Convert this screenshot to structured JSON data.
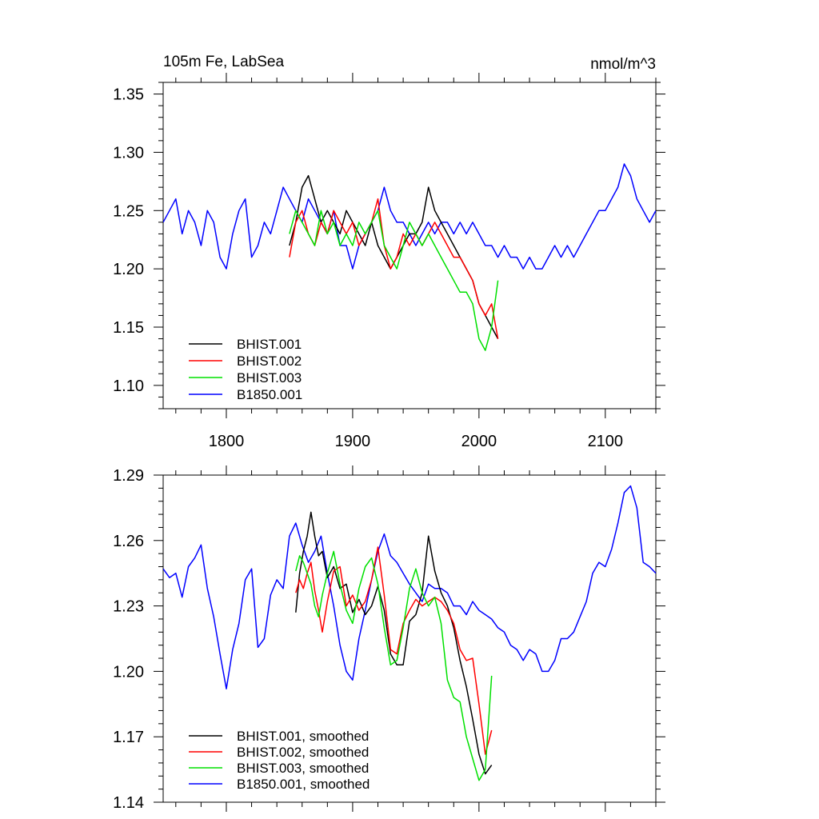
{
  "chart_data": [
    {
      "type": "line",
      "title": "105m Fe, LabSea",
      "units": "nmol/m^3",
      "xlim": [
        1750,
        2140
      ],
      "ylim": [
        1.08,
        1.36
      ],
      "x_ticks": [
        1800,
        1900,
        2000,
        2100
      ],
      "x_tick_labels": [
        "1800",
        "1900",
        "2000",
        "2100"
      ],
      "y_ticks": [
        1.1,
        1.15,
        1.2,
        1.25,
        1.3,
        1.35
      ],
      "y_tick_labels": [
        "1.10",
        "1.15",
        "1.20",
        "1.25",
        "1.30",
        "1.35"
      ],
      "legend_position": "bottom-left",
      "series": [
        {
          "name": "BHIST.001",
          "color": "#000000",
          "x": [
            1850,
            1855,
            1860,
            1865,
            1870,
            1875,
            1880,
            1885,
            1890,
            1895,
            1900,
            1905,
            1910,
            1915,
            1920,
            1925,
            1930,
            1935,
            1940,
            1945,
            1950,
            1955,
            1960,
            1965,
            1970,
            1975,
            1980,
            1985,
            1990,
            1995,
            2000,
            2005,
            2010,
            2015
          ],
          "y": [
            1.22,
            1.24,
            1.27,
            1.28,
            1.26,
            1.24,
            1.25,
            1.24,
            1.23,
            1.25,
            1.24,
            1.23,
            1.22,
            1.24,
            1.22,
            1.21,
            1.2,
            1.21,
            1.22,
            1.23,
            1.23,
            1.24,
            1.27,
            1.25,
            1.24,
            1.23,
            1.22,
            1.21,
            1.2,
            1.19,
            1.17,
            1.16,
            1.15,
            1.14
          ]
        },
        {
          "name": "BHIST.002",
          "color": "#ff0000",
          "x": [
            1850,
            1855,
            1860,
            1865,
            1870,
            1875,
            1880,
            1885,
            1890,
            1895,
            1900,
            1905,
            1910,
            1915,
            1920,
            1925,
            1930,
            1935,
            1940,
            1945,
            1950,
            1955,
            1960,
            1965,
            1970,
            1975,
            1980,
            1985,
            1990,
            1995,
            2000,
            2005,
            2010,
            2015
          ],
          "y": [
            1.21,
            1.24,
            1.25,
            1.23,
            1.22,
            1.24,
            1.23,
            1.25,
            1.24,
            1.23,
            1.24,
            1.22,
            1.23,
            1.24,
            1.26,
            1.22,
            1.2,
            1.21,
            1.23,
            1.22,
            1.23,
            1.22,
            1.23,
            1.24,
            1.23,
            1.22,
            1.21,
            1.21,
            1.2,
            1.19,
            1.17,
            1.16,
            1.17,
            1.14
          ]
        },
        {
          "name": "BHIST.003",
          "color": "#00e000",
          "x": [
            1850,
            1855,
            1860,
            1865,
            1870,
            1875,
            1880,
            1885,
            1890,
            1895,
            1900,
            1905,
            1910,
            1915,
            1920,
            1925,
            1930,
            1935,
            1940,
            1945,
            1950,
            1955,
            1960,
            1965,
            1970,
            1975,
            1980,
            1985,
            1990,
            1995,
            2000,
            2005,
            2010,
            2015
          ],
          "y": [
            1.23,
            1.25,
            1.24,
            1.23,
            1.22,
            1.25,
            1.23,
            1.24,
            1.22,
            1.23,
            1.22,
            1.24,
            1.23,
            1.24,
            1.25,
            1.22,
            1.21,
            1.2,
            1.22,
            1.24,
            1.23,
            1.22,
            1.23,
            1.22,
            1.21,
            1.2,
            1.19,
            1.18,
            1.18,
            1.17,
            1.14,
            1.13,
            1.15,
            1.19
          ]
        },
        {
          "name": "B1850.001",
          "color": "#0000ff",
          "x": [
            1750,
            1755,
            1760,
            1765,
            1770,
            1775,
            1780,
            1785,
            1790,
            1795,
            1800,
            1805,
            1810,
            1815,
            1820,
            1825,
            1830,
            1835,
            1840,
            1845,
            1850,
            1855,
            1860,
            1865,
            1870,
            1875,
            1880,
            1885,
            1890,
            1895,
            1900,
            1905,
            1910,
            1915,
            1920,
            1925,
            1930,
            1935,
            1940,
            1945,
            1950,
            1955,
            1960,
            1965,
            1970,
            1975,
            1980,
            1985,
            1990,
            1995,
            2000,
            2005,
            2010,
            2015,
            2020,
            2025,
            2030,
            2035,
            2040,
            2045,
            2050,
            2055,
            2060,
            2065,
            2070,
            2075,
            2080,
            2085,
            2090,
            2095,
            2100,
            2105,
            2110,
            2115,
            2120,
            2125,
            2130,
            2135,
            2140
          ],
          "y": [
            1.24,
            1.25,
            1.26,
            1.23,
            1.25,
            1.24,
            1.22,
            1.25,
            1.24,
            1.21,
            1.2,
            1.23,
            1.25,
            1.26,
            1.21,
            1.22,
            1.24,
            1.23,
            1.25,
            1.27,
            1.26,
            1.25,
            1.24,
            1.26,
            1.25,
            1.24,
            1.23,
            1.25,
            1.22,
            1.22,
            1.2,
            1.22,
            1.23,
            1.24,
            1.25,
            1.27,
            1.25,
            1.24,
            1.24,
            1.23,
            1.22,
            1.23,
            1.24,
            1.23,
            1.24,
            1.24,
            1.23,
            1.24,
            1.23,
            1.24,
            1.23,
            1.22,
            1.22,
            1.21,
            1.22,
            1.21,
            1.21,
            1.2,
            1.21,
            1.2,
            1.2,
            1.21,
            1.22,
            1.21,
            1.22,
            1.21,
            1.22,
            1.23,
            1.24,
            1.25,
            1.25,
            1.26,
            1.27,
            1.29,
            1.28,
            1.26,
            1.25,
            1.24,
            1.25
          ]
        }
      ]
    },
    {
      "type": "line",
      "xlim": [
        1750,
        2140
      ],
      "ylim": [
        1.14,
        1.29
      ],
      "x_ticks": [
        1800,
        1900,
        2000,
        2100
      ],
      "y_ticks": [
        1.14,
        1.17,
        1.2,
        1.23,
        1.26,
        1.29
      ],
      "y_tick_labels": [
        "1.14",
        "1.17",
        "1.20",
        "1.23",
        "1.26",
        "1.29"
      ],
      "legend_position": "bottom-left",
      "series": [
        {
          "name": "BHIST.001, smoothed",
          "color": "#000000",
          "x": [
            1855,
            1858,
            1861,
            1864,
            1867,
            1870,
            1873,
            1876,
            1880,
            1885,
            1890,
            1895,
            1900,
            1905,
            1910,
            1915,
            1920,
            1925,
            1930,
            1935,
            1940,
            1945,
            1950,
            1955,
            1960,
            1965,
            1970,
            1975,
            1980,
            1985,
            1990,
            1995,
            2000,
            2005,
            2010
          ],
          "y": [
            1.227,
            1.245,
            1.255,
            1.262,
            1.273,
            1.262,
            1.253,
            1.255,
            1.243,
            1.248,
            1.238,
            1.24,
            1.227,
            1.233,
            1.226,
            1.23,
            1.239,
            1.228,
            1.208,
            1.203,
            1.203,
            1.223,
            1.226,
            1.236,
            1.262,
            1.246,
            1.236,
            1.23,
            1.22,
            1.205,
            1.193,
            1.178,
            1.162,
            1.153,
            1.157
          ]
        },
        {
          "name": "BHIST.002, smoothed",
          "color": "#ff0000",
          "x": [
            1855,
            1858,
            1861,
            1864,
            1867,
            1870,
            1873,
            1876,
            1880,
            1885,
            1890,
            1895,
            1900,
            1905,
            1910,
            1915,
            1920,
            1925,
            1930,
            1935,
            1940,
            1945,
            1950,
            1955,
            1960,
            1965,
            1970,
            1975,
            1980,
            1985,
            1990,
            1995,
            2000,
            2005,
            2010
          ],
          "y": [
            1.236,
            1.242,
            1.238,
            1.245,
            1.25,
            1.237,
            1.228,
            1.218,
            1.232,
            1.246,
            1.248,
            1.23,
            1.235,
            1.228,
            1.232,
            1.242,
            1.257,
            1.235,
            1.21,
            1.208,
            1.222,
            1.228,
            1.233,
            1.23,
            1.232,
            1.234,
            1.232,
            1.228,
            1.222,
            1.21,
            1.205,
            1.206,
            1.185,
            1.162,
            1.173
          ]
        },
        {
          "name": "BHIST.003, smoothed",
          "color": "#00e000",
          "x": [
            1855,
            1858,
            1861,
            1864,
            1867,
            1870,
            1873,
            1876,
            1880,
            1885,
            1890,
            1895,
            1900,
            1905,
            1910,
            1915,
            1920,
            1925,
            1930,
            1935,
            1940,
            1945,
            1950,
            1955,
            1960,
            1965,
            1970,
            1975,
            1980,
            1985,
            1990,
            1995,
            2000,
            2005,
            2010
          ],
          "y": [
            1.246,
            1.253,
            1.25,
            1.245,
            1.24,
            1.23,
            1.225,
            1.235,
            1.245,
            1.255,
            1.24,
            1.228,
            1.222,
            1.238,
            1.248,
            1.252,
            1.24,
            1.22,
            1.203,
            1.205,
            1.22,
            1.238,
            1.247,
            1.236,
            1.23,
            1.234,
            1.222,
            1.196,
            1.188,
            1.186,
            1.17,
            1.16,
            1.15,
            1.155,
            1.198
          ]
        },
        {
          "name": "B1850.001, smoothed",
          "color": "#0000ff",
          "x": [
            1750,
            1755,
            1760,
            1765,
            1770,
            1775,
            1780,
            1785,
            1790,
            1795,
            1800,
            1805,
            1810,
            1815,
            1820,
            1825,
            1830,
            1835,
            1840,
            1845,
            1850,
            1855,
            1860,
            1865,
            1870,
            1875,
            1880,
            1885,
            1890,
            1895,
            1900,
            1905,
            1910,
            1915,
            1920,
            1925,
            1930,
            1935,
            1940,
            1945,
            1950,
            1955,
            1960,
            1965,
            1970,
            1975,
            1980,
            1985,
            1990,
            1995,
            2000,
            2005,
            2010,
            2015,
            2020,
            2025,
            2030,
            2035,
            2040,
            2045,
            2050,
            2055,
            2060,
            2065,
            2070,
            2075,
            2080,
            2085,
            2090,
            2095,
            2100,
            2105,
            2110,
            2115,
            2120,
            2125,
            2130,
            2135,
            2140
          ],
          "y": [
            1.247,
            1.243,
            1.245,
            1.234,
            1.248,
            1.252,
            1.258,
            1.238,
            1.225,
            1.208,
            1.192,
            1.21,
            1.222,
            1.242,
            1.247,
            1.211,
            1.215,
            1.235,
            1.242,
            1.238,
            1.262,
            1.268,
            1.258,
            1.25,
            1.255,
            1.262,
            1.245,
            1.23,
            1.212,
            1.2,
            1.196,
            1.215,
            1.228,
            1.242,
            1.255,
            1.263,
            1.253,
            1.25,
            1.245,
            1.24,
            1.236,
            1.232,
            1.24,
            1.238,
            1.238,
            1.236,
            1.23,
            1.23,
            1.226,
            1.232,
            1.228,
            1.226,
            1.224,
            1.22,
            1.218,
            1.212,
            1.21,
            1.205,
            1.21,
            1.208,
            1.2,
            1.2,
            1.205,
            1.215,
            1.215,
            1.218,
            1.225,
            1.232,
            1.245,
            1.25,
            1.248,
            1.256,
            1.268,
            1.282,
            1.285,
            1.275,
            1.25,
            1.248,
            1.245
          ]
        }
      ]
    }
  ]
}
